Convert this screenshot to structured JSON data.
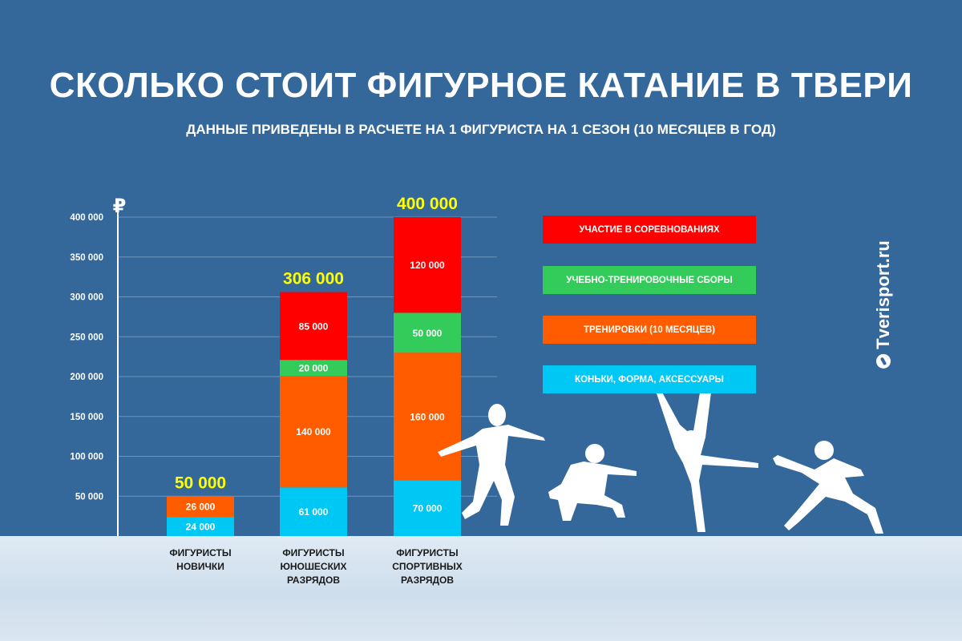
{
  "header": {
    "title": "СКОЛЬКО СТОИТ ФИГУРНОЕ КАТАНИЕ В ТВЕРИ",
    "subtitle": "ДАННЫЕ ПРИВЕДЕНЫ В РАСЧЕТЕ НА 1 ФИГУРИСТА НА 1 СЕЗОН (10 МЕСЯЦЕВ В ГОД)"
  },
  "brand": {
    "text": "Tverisport.ru",
    "logo_icon": "tverisport-logo-icon"
  },
  "decor": {
    "icons": [
      "skater-silhouette-icon",
      "skater-silhouette-icon",
      "skater-silhouette-icon",
      "skater-silhouette-icon"
    ]
  },
  "chart_data": {
    "type": "bar",
    "stacked": true,
    "ylabel": "₽",
    "ylim": [
      0,
      400000
    ],
    "yticks": [
      50000,
      100000,
      150000,
      200000,
      250000,
      300000,
      350000,
      400000
    ],
    "ytick_labels": [
      "50 000",
      "100 000",
      "150 000",
      "200 000",
      "250 000",
      "300 000",
      "350 000",
      "400 000"
    ],
    "grid": true,
    "legend_position": "right",
    "categories": [
      [
        "ФИГУРИСТЫ",
        "НОВИЧКИ"
      ],
      [
        "ФИГУРИСТЫ",
        "ЮНОШЕСКИХ",
        "РАЗРЯДОВ"
      ],
      [
        "ФИГУРИСТЫ",
        "СПОРТИВНЫХ",
        "РАЗРЯДОВ"
      ]
    ],
    "totals": [
      50000,
      306000,
      400000
    ],
    "total_labels": [
      "50 000",
      "306 000",
      "400 000"
    ],
    "series": [
      {
        "name": "КОНЬКИ, ФОРМА, АКСЕССУАРЫ",
        "color": "#00c8f5",
        "values": [
          24000,
          61000,
          70000
        ],
        "labels": [
          "24 000",
          "61 000",
          "70 000"
        ]
      },
      {
        "name": "ТРЕНИРОВКИ (10 МЕСЯЦЕВ)",
        "color": "#ff5c00",
        "values": [
          26000,
          140000,
          160000
        ],
        "labels": [
          "26 000",
          "140 000",
          "160 000"
        ]
      },
      {
        "name": "УЧЕБНО-ТРЕНИРОВОЧНЫЕ СБОРЫ",
        "color": "#33cc5a",
        "values": [
          0,
          20000,
          50000
        ],
        "labels": [
          "",
          "20 000",
          "50 000"
        ]
      },
      {
        "name": "УЧАСТИЕ В СОРЕВНОВАНИЯХ",
        "color": "#ff0000",
        "values": [
          0,
          85000,
          120000
        ],
        "labels": [
          "",
          "85 000",
          "120 000"
        ]
      }
    ],
    "legend_order": [
      3,
      2,
      1,
      0
    ],
    "total_label_color": "#ffff00"
  }
}
